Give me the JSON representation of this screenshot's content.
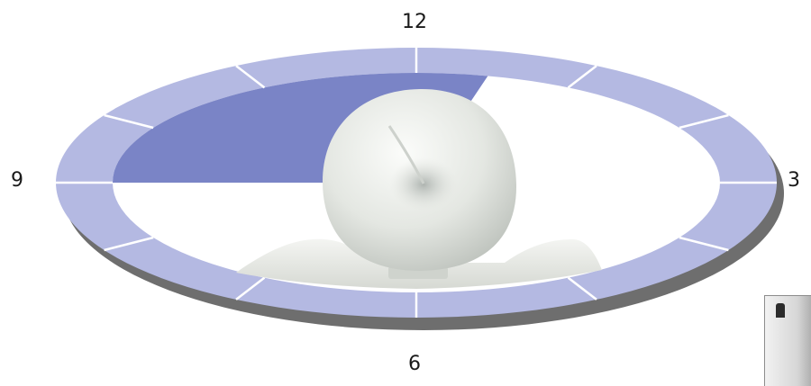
{
  "diagram": {
    "clock_labels": {
      "twelve": "12",
      "three": "3",
      "six": "6",
      "nine": "9"
    },
    "colors": {
      "ring": "#b4b9e2",
      "highlighted_sector": "#7a84c6",
      "ring_shadow": "#6e6e6e",
      "inner_background": "#ffffff",
      "tooth": "#e6e8e4",
      "gum": "#e9ebe6"
    },
    "highlighted_sector_hours": [
      9,
      1
    ]
  }
}
